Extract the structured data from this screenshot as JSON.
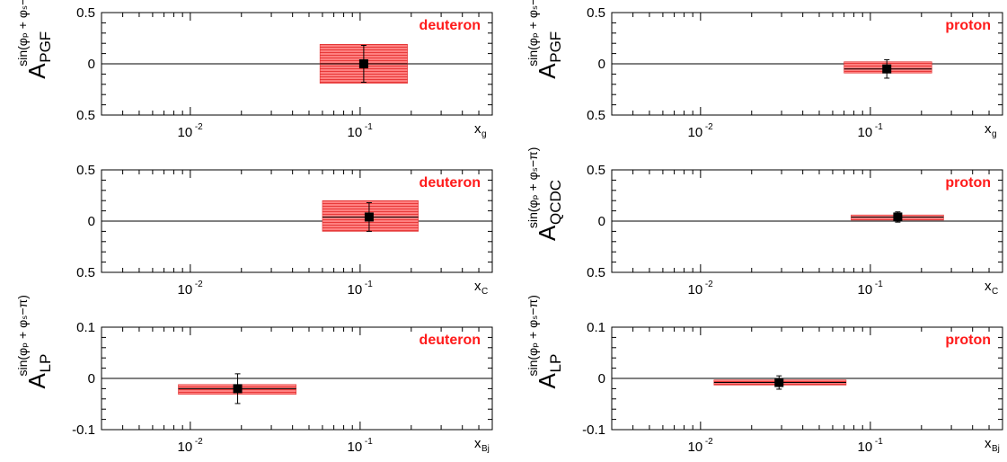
{
  "colors": {
    "band": "#ff6a6a",
    "band_edge": "#e03030",
    "tag": "#ff1a1a",
    "marker": "#000000"
  },
  "chart_data": [
    {
      "type": "scatter",
      "xscale": "log",
      "xlim": [
        0.003,
        0.6
      ],
      "ylim": [
        -0.5,
        0.5
      ],
      "yticks": [
        {
          "v": 0.5,
          "label": "0.5"
        },
        {
          "v": 0,
          "label": "0"
        },
        {
          "v": -0.5,
          "label": "0.5"
        }
      ],
      "xticks": [
        {
          "v": 0.01,
          "base": "10",
          "exp": "-2"
        },
        {
          "v": 0.1,
          "base": "10",
          "exp": "-1"
        }
      ],
      "xlabel": {
        "main": "x",
        "sub": "g"
      },
      "ylabel": {
        "main": "A",
        "sub": "PGF",
        "sup": "sin(φₚ + φₛ−π)"
      },
      "tag": "deuteron",
      "point": {
        "x": 0.105,
        "y": 0.0,
        "yerr": 0.18,
        "xlo": 0.058,
        "xhi": 0.19
      },
      "band": {
        "x0": 0.058,
        "x1": 0.19,
        "y0": -0.19,
        "y1": 0.19
      }
    },
    {
      "type": "scatter",
      "xscale": "log",
      "xlim": [
        0.003,
        0.6
      ],
      "ylim": [
        -0.5,
        0.5
      ],
      "yticks": [
        {
          "v": 0.5,
          "label": "0.5"
        },
        {
          "v": 0,
          "label": "0"
        },
        {
          "v": -0.5,
          "label": "0.5"
        }
      ],
      "xticks": [
        {
          "v": 0.01,
          "base": "10",
          "exp": "-2"
        },
        {
          "v": 0.1,
          "base": "10",
          "exp": "-1"
        }
      ],
      "xlabel": {
        "main": "x",
        "sub": "g"
      },
      "ylabel": {
        "main": "A",
        "sub": "PGF",
        "sup": "sin(φₚ + φₛ−π)"
      },
      "tag": "proton",
      "point": {
        "x": 0.125,
        "y": -0.05,
        "yerr": 0.09,
        "xlo": 0.07,
        "xhi": 0.23
      },
      "band": {
        "x0": 0.07,
        "x1": 0.23,
        "y0": -0.09,
        "y1": 0.02
      }
    },
    {
      "type": "scatter",
      "xscale": "log",
      "xlim": [
        0.003,
        0.6
      ],
      "ylim": [
        -0.5,
        0.5
      ],
      "yticks": [
        {
          "v": 0.5,
          "label": "0.5"
        },
        {
          "v": 0,
          "label": "0"
        },
        {
          "v": -0.5,
          "label": "0.5"
        }
      ],
      "xticks": [
        {
          "v": 0.01,
          "base": "10",
          "exp": "-2"
        },
        {
          "v": 0.1,
          "base": "10",
          "exp": "-1"
        }
      ],
      "xlabel": {
        "main": "x",
        "sub": "C"
      },
      "ylabel": {
        "main": "",
        "sub": "",
        "sup": ""
      },
      "tag": "deuteron",
      "point": {
        "x": 0.113,
        "y": 0.04,
        "yerr": 0.14,
        "xlo": 0.06,
        "xhi": 0.22
      },
      "band": {
        "x0": 0.06,
        "x1": 0.22,
        "y0": -0.1,
        "y1": 0.2
      }
    },
    {
      "type": "scatter",
      "xscale": "log",
      "xlim": [
        0.003,
        0.6
      ],
      "ylim": [
        -0.5,
        0.5
      ],
      "yticks": [
        {
          "v": 0.5,
          "label": "0.5"
        },
        {
          "v": 0,
          "label": "0"
        },
        {
          "v": -0.5,
          "label": "0.5"
        }
      ],
      "xticks": [
        {
          "v": 0.01,
          "base": "10",
          "exp": "-2"
        },
        {
          "v": 0.1,
          "base": "10",
          "exp": "-1"
        }
      ],
      "xlabel": {
        "main": "x",
        "sub": "C"
      },
      "ylabel": {
        "main": "A",
        "sub": "QCDC",
        "sup": "sin(φₚ + φₛ−π)"
      },
      "tag": "proton",
      "point": {
        "x": 0.145,
        "y": 0.04,
        "yerr": 0.05,
        "xlo": 0.077,
        "xhi": 0.27
      },
      "band": {
        "x0": 0.077,
        "x1": 0.27,
        "y0": 0.01,
        "y1": 0.06
      }
    },
    {
      "type": "scatter",
      "xscale": "log",
      "xlim": [
        0.003,
        0.6
      ],
      "ylim": [
        -0.1,
        0.1
      ],
      "yticks": [
        {
          "v": 0.1,
          "label": "0.1"
        },
        {
          "v": 0,
          "label": "0"
        },
        {
          "v": -0.1,
          "label": "-0.1"
        }
      ],
      "xticks": [
        {
          "v": 0.01,
          "base": "10",
          "exp": "-2"
        },
        {
          "v": 0.1,
          "base": "10",
          "exp": "-1"
        }
      ],
      "xlabel": {
        "main": "x",
        "sub": "Bj"
      },
      "ylabel": {
        "main": "A",
        "sub": "LP",
        "sup": "sin(φₚ + φₛ−π)"
      },
      "tag": "deuteron",
      "point": {
        "x": 0.019,
        "y": -0.02,
        "yerr": 0.029,
        "xlo": 0.0085,
        "xhi": 0.042
      },
      "band": {
        "x0": 0.0085,
        "x1": 0.042,
        "y0": -0.031,
        "y1": -0.012
      }
    },
    {
      "type": "scatter",
      "xscale": "log",
      "xlim": [
        0.003,
        0.6
      ],
      "ylim": [
        -0.1,
        0.1
      ],
      "yticks": [
        {
          "v": 0.1,
          "label": "0.1"
        },
        {
          "v": 0,
          "label": "0"
        },
        {
          "v": -0.1,
          "label": "-0.1"
        }
      ],
      "xticks": [
        {
          "v": 0.01,
          "base": "10",
          "exp": "-2"
        },
        {
          "v": 0.1,
          "base": "10",
          "exp": "-1"
        }
      ],
      "xlabel": {
        "main": "x",
        "sub": "Bj"
      },
      "ylabel": {
        "main": "A",
        "sub": "LP",
        "sup": "sin(φₚ + φₛ−π)"
      },
      "tag": "proton",
      "point": {
        "x": 0.029,
        "y": -0.008,
        "yerr": 0.013,
        "xlo": 0.012,
        "xhi": 0.072
      },
      "band": {
        "x0": 0.012,
        "x1": 0.072,
        "y0": -0.013,
        "y1": -0.003
      }
    }
  ]
}
